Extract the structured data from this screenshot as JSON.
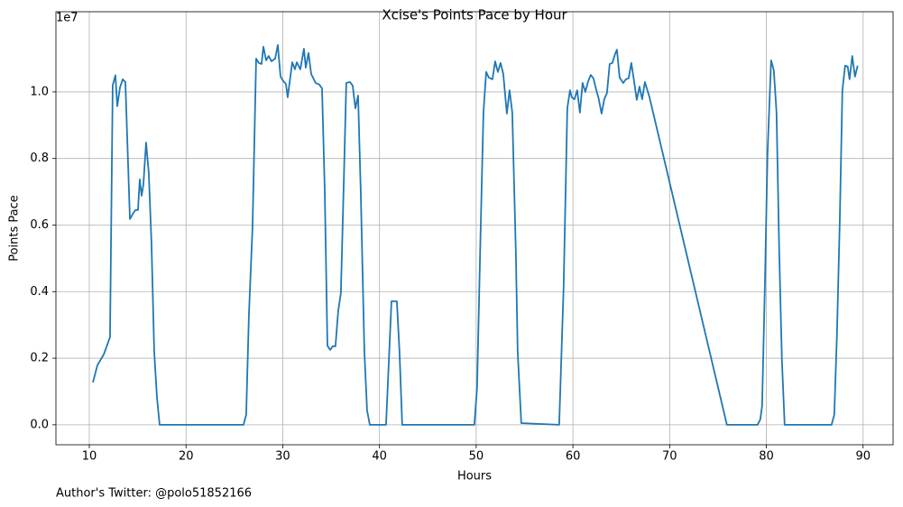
{
  "chart_data": {
    "type": "line",
    "title": "Xcise's Points Pace by Hour",
    "xlabel": "Hours",
    "ylabel": "Points Pace",
    "y_offset_label": "1e7",
    "annotation": "Author's Twitter: @polo51852166",
    "color": "#1f77b4",
    "grid": true,
    "xlim": [
      6.55,
      93.1
    ],
    "ylim": [
      -0.06,
      1.241
    ],
    "xticks": [
      10,
      20,
      30,
      40,
      50,
      60,
      70,
      80,
      90
    ],
    "yticks": [
      {
        "value": 0,
        "label": "0.0"
      },
      0.2,
      0.4,
      0.6,
      0.8,
      {
        "value": 1,
        "label": "1.0"
      }
    ],
    "x": [
      10.37,
      10.84,
      11.49,
      12.14,
      12.42,
      12.7,
      12.89,
      13.17,
      13.45,
      13.73,
      14.2,
      14.57,
      14.76,
      15.03,
      15.22,
      15.41,
      15.59,
      15.87,
      16.15,
      16.43,
      16.71,
      16.99,
      17.27,
      25.94,
      26.22,
      26.5,
      26.88,
      27.25,
      27.53,
      27.81,
      28.0,
      28.28,
      28.55,
      28.83,
      29.21,
      29.49,
      29.77,
      30.05,
      30.33,
      30.51,
      30.79,
      30.98,
      31.26,
      31.45,
      31.82,
      32.19,
      32.38,
      32.66,
      32.94,
      33.4,
      33.78,
      34.06,
      34.34,
      34.62,
      34.9,
      35.17,
      35.45,
      35.73,
      36.01,
      36.29,
      36.57,
      36.95,
      37.23,
      37.51,
      37.79,
      38.07,
      38.44,
      38.72,
      39.0,
      40.68,
      41.24,
      41.8,
      42.07,
      42.35,
      49.81,
      50.09,
      50.47,
      50.75,
      51.03,
      51.31,
      51.68,
      51.96,
      52.24,
      52.52,
      52.8,
      53.17,
      53.45,
      53.73,
      54.1,
      54.29,
      54.66,
      58.58,
      59.04,
      59.42,
      59.7,
      59.88,
      60.16,
      60.44,
      60.72,
      61.0,
      61.28,
      61.56,
      61.84,
      62.12,
      62.4,
      62.68,
      62.96,
      63.24,
      63.52,
      63.8,
      64.08,
      64.36,
      64.55,
      64.83,
      65.2,
      65.48,
      65.76,
      66.04,
      66.32,
      66.6,
      66.88,
      67.16,
      67.44,
      67.9,
      75.92,
      79.09,
      79.37,
      79.56,
      79.84,
      80.12,
      80.49,
      80.77,
      81.05,
      81.33,
      81.61,
      81.89,
      86.74,
      87.02,
      87.3,
      87.58,
      87.86,
      88.14,
      88.41,
      88.6,
      88.88,
      89.16,
      89.44
    ],
    "values": [
      0.127,
      0.179,
      0.211,
      0.263,
      1.02,
      1.05,
      0.957,
      1.013,
      1.038,
      1.03,
      0.618,
      0.637,
      0.645,
      0.645,
      0.737,
      0.688,
      0.721,
      0.848,
      0.756,
      0.545,
      0.22,
      0.084,
      0,
      0,
      0.03,
      0.328,
      0.599,
      1.1,
      1.087,
      1.084,
      1.136,
      1.095,
      1.108,
      1.092,
      1.1,
      1.141,
      1.046,
      1.033,
      1.024,
      0.984,
      1.046,
      1.089,
      1.068,
      1.089,
      1.068,
      1.13,
      1.073,
      1.117,
      1.054,
      1.027,
      1.022,
      1.011,
      0.707,
      0.238,
      0.225,
      0.236,
      0.236,
      0.341,
      0.396,
      0.707,
      1.027,
      1.03,
      1.019,
      0.951,
      0.989,
      0.694,
      0.22,
      0.043,
      0,
      0,
      0.371,
      0.371,
      0.22,
      0,
      0,
      0.111,
      0.599,
      0.938,
      1.06,
      1.043,
      1.038,
      1.092,
      1.06,
      1.087,
      1.054,
      0.935,
      1.005,
      0.938,
      0.518,
      0.22,
      0.005,
      0,
      0.415,
      0.951,
      1.005,
      0.984,
      0.978,
      1.005,
      0.938,
      1.027,
      1.0,
      1.03,
      1.051,
      1.041,
      1.008,
      0.978,
      0.935,
      0.978,
      0.997,
      1.084,
      1.087,
      1.114,
      1.127,
      1.043,
      1.027,
      1.038,
      1.041,
      1.087,
      1.033,
      0.976,
      1.016,
      0.978,
      1.03,
      0.986,
      0,
      0,
      0.016,
      0.057,
      0.409,
      0.816,
      1.095,
      1.065,
      0.938,
      0.518,
      0.192,
      0,
      0,
      0.03,
      0.274,
      0.599,
      1.005,
      1.079,
      1.076,
      1.038,
      1.108,
      1.046,
      1.079
    ]
  }
}
